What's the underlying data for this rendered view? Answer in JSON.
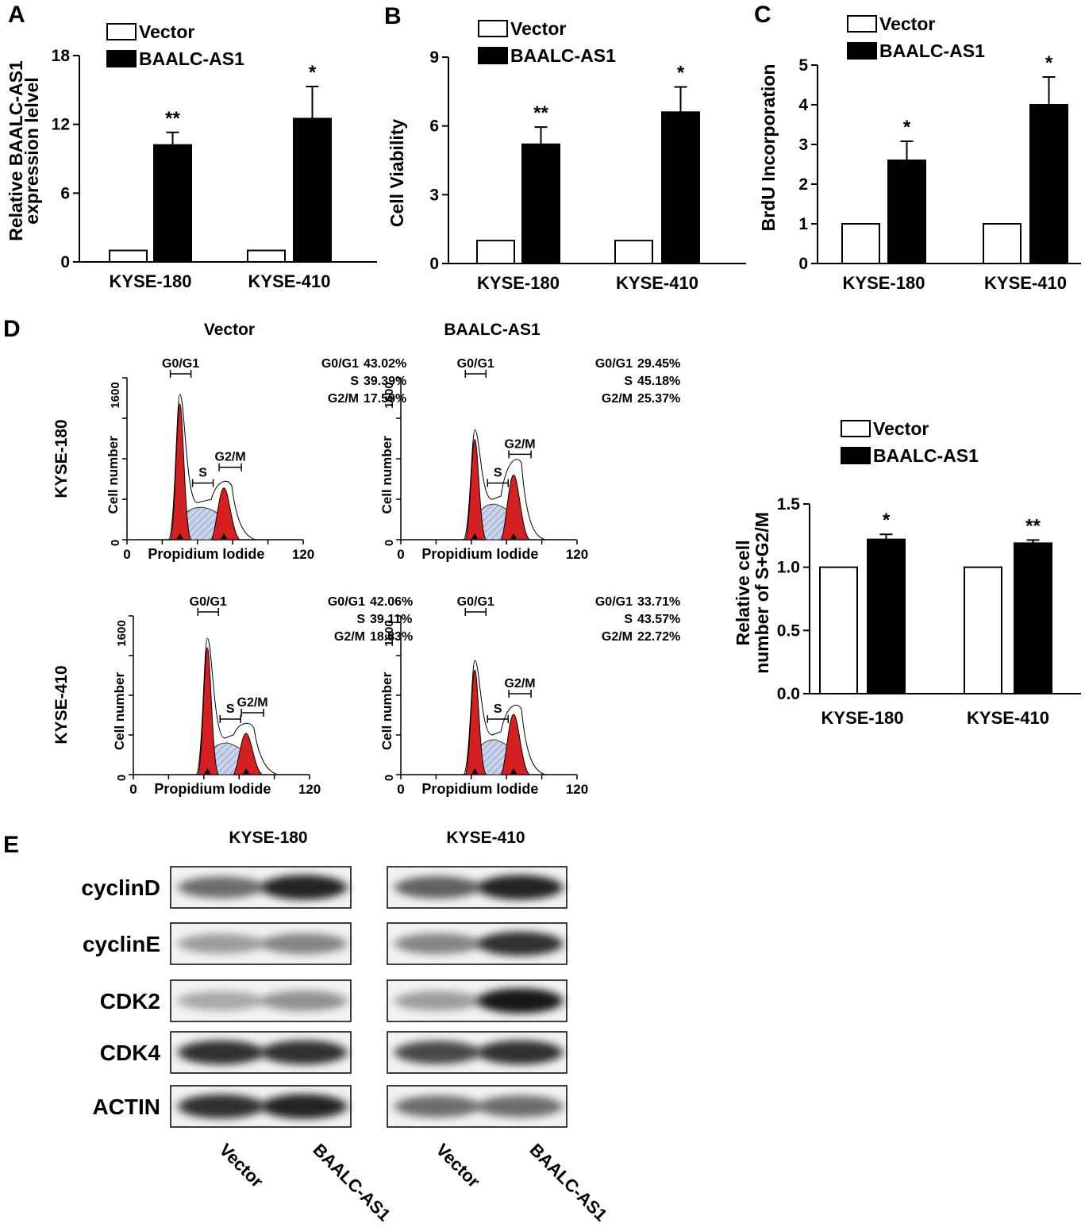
{
  "panels": {
    "a": "A",
    "b": "B",
    "c": "C",
    "d": "D",
    "e": "E"
  },
  "legend": {
    "vector": "Vector",
    "baalc": "BAALC-AS1"
  },
  "colors": {
    "vector_fill": "#ffffff",
    "baalc_fill": "#000000",
    "g_peak": "#d42020",
    "s_phase": "#9bb0d4"
  },
  "chart_data": [
    {
      "id": "A",
      "type": "bar",
      "categories": [
        "KYSE-180",
        "KYSE-410"
      ],
      "ylabel_line1": "Relative BAALC-AS1",
      "ylabel_line2": "expression lelvel",
      "ylim": [
        0,
        18
      ],
      "yticks": [
        "0",
        "6",
        "12",
        "18"
      ],
      "ytick_values": [
        0,
        6,
        12,
        18
      ],
      "series": [
        {
          "name": "Vector",
          "values": [
            1,
            1
          ],
          "errors": [
            0,
            0
          ]
        },
        {
          "name": "BAALC-AS1",
          "values": [
            10.2,
            12.5
          ],
          "errors": [
            1.1,
            2.8
          ]
        }
      ],
      "significance": [
        "**",
        "*"
      ]
    },
    {
      "id": "B",
      "type": "bar",
      "categories": [
        "KYSE-180",
        "KYSE-410"
      ],
      "ylabel_line1": "Cell Viability",
      "ylabel_line2": "",
      "ylim": [
        0,
        9
      ],
      "yticks": [
        "0",
        "3",
        "6",
        "9"
      ],
      "ytick_values": [
        0,
        3,
        6,
        9
      ],
      "series": [
        {
          "name": "Vector",
          "values": [
            1,
            1
          ],
          "errors": [
            0,
            0
          ]
        },
        {
          "name": "BAALC-AS1",
          "values": [
            5.2,
            6.6
          ],
          "errors": [
            0.75,
            1.1
          ]
        }
      ],
      "significance": [
        "**",
        "*"
      ]
    },
    {
      "id": "C",
      "type": "bar",
      "categories": [
        "KYSE-180",
        "KYSE-410"
      ],
      "ylabel_line1": "BrdU Incorporation",
      "ylabel_line2": "",
      "ylim": [
        0,
        5
      ],
      "yticks": [
        "0",
        "1",
        "2",
        "3",
        "4",
        "5"
      ],
      "ytick_values": [
        0,
        1,
        2,
        3,
        4,
        5
      ],
      "series": [
        {
          "name": "Vector",
          "values": [
            1,
            1
          ],
          "errors": [
            0,
            0
          ]
        },
        {
          "name": "BAALC-AS1",
          "values": [
            2.6,
            4.0
          ],
          "errors": [
            0.48,
            0.7
          ]
        }
      ],
      "significance": [
        "*",
        "*"
      ]
    },
    {
      "id": "D-right",
      "type": "bar",
      "categories": [
        "KYSE-180",
        "KYSE-410"
      ],
      "ylabel_line1": "Relative cell",
      "ylabel_line2": "number of S+G2/M",
      "ylim": [
        0,
        1.5
      ],
      "yticks": [
        "0.0",
        "0.5",
        "1.0",
        "1.5"
      ],
      "ytick_values": [
        0,
        0.5,
        1.0,
        1.5
      ],
      "series": [
        {
          "name": "Vector",
          "values": [
            1.0,
            1.0
          ],
          "errors": [
            0,
            0
          ]
        },
        {
          "name": "BAALC-AS1",
          "values": [
            1.22,
            1.19
          ],
          "errors": [
            0.04,
            0.025
          ]
        }
      ],
      "significance": [
        "*",
        "**"
      ]
    }
  ],
  "flow": {
    "col_titles": [
      "Vector",
      "BAALC-AS1"
    ],
    "row_titles": [
      "KYSE-180",
      "KYSE-410"
    ],
    "ylabel": "Cell number",
    "xlabel": "Propidium Iodide",
    "ymax_label": "1600",
    "y0_label": "0",
    "x0_label": "0",
    "xmax_label": "120",
    "gate_g0": "G0/G1",
    "gate_s": "S",
    "gate_g2": "G2/M",
    "stat_labels": [
      "G0/G1",
      "S",
      "G2/M"
    ],
    "stats": [
      [
        "43.02%",
        "39.39%",
        "17.59%"
      ],
      [
        "29.45%",
        "45.18%",
        "25.37%"
      ],
      [
        "42.06%",
        "39.11%",
        "18.83%"
      ],
      [
        "33.71%",
        "43.57%",
        "22.72%"
      ]
    ]
  },
  "western": {
    "groups": [
      "KYSE-180",
      "KYSE-410"
    ],
    "proteins": [
      "cyclinD",
      "cyclinE",
      "CDK2",
      "CDK4",
      "ACTIN"
    ],
    "lane_labels": [
      "Vector",
      "BAALC-AS1",
      "Vector",
      "BAALC-AS1"
    ],
    "band_intensity": [
      [
        0.55,
        0.85,
        0.6,
        0.85
      ],
      [
        0.35,
        0.45,
        0.45,
        0.8
      ],
      [
        0.3,
        0.4,
        0.35,
        0.9
      ],
      [
        0.8,
        0.8,
        0.7,
        0.8
      ],
      [
        0.8,
        0.85,
        0.55,
        0.55
      ]
    ]
  }
}
